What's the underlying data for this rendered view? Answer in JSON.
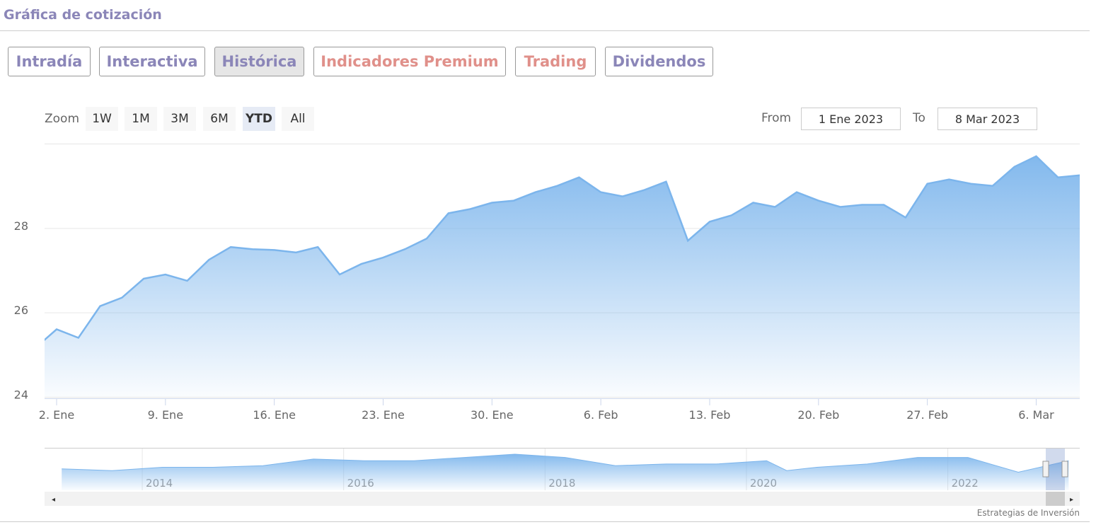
{
  "header": {
    "title": "Gráfica de cotización"
  },
  "tabs": [
    {
      "label": "Intradía",
      "color": "#8b86b8"
    },
    {
      "label": "Interactiva",
      "color": "#8b86b8"
    },
    {
      "label": "Histórica",
      "color": "#8b86b8",
      "active": true
    },
    {
      "label": "Indicadores Premium",
      "color": "#e0908a"
    },
    {
      "label": "Trading",
      "color": "#e0908a"
    },
    {
      "label": "Dividendos",
      "color": "#8b86b8"
    }
  ],
  "zoom": {
    "label": "Zoom",
    "buttons": [
      {
        "label": "1W"
      },
      {
        "label": "1M"
      },
      {
        "label": "3M"
      },
      {
        "label": "6M"
      },
      {
        "label": "YTD",
        "selected": true
      },
      {
        "label": "All"
      }
    ]
  },
  "range": {
    "from_label": "From",
    "from": "1 Ene 2023",
    "to_label": "To",
    "to": "8 Mar 2023"
  },
  "credit": "Estrategias de Inversión",
  "chart_data": {
    "type": "area",
    "color": "#7cb5ec",
    "grid": true,
    "categories": [
      null,
      "2. Ene",
      null,
      null,
      null,
      null,
      "9. Ene",
      null,
      null,
      null,
      null,
      "16. Ene",
      null,
      null,
      null,
      null,
      "23. Ene",
      null,
      null,
      null,
      null,
      "30. Ene",
      null,
      null,
      null,
      null,
      "6. Feb",
      null,
      null,
      null,
      null,
      "13. Feb",
      null,
      null,
      null,
      null,
      "20. Feb",
      null,
      null,
      null,
      null,
      "27. Feb",
      null,
      null,
      null,
      null,
      "6. Mar",
      null,
      null
    ],
    "values": [
      25.15,
      25.6,
      25.4,
      26.15,
      26.35,
      26.8,
      26.9,
      26.75,
      27.25,
      27.55,
      27.5,
      27.48,
      27.42,
      27.55,
      26.9,
      27.15,
      27.3,
      27.5,
      27.75,
      28.35,
      28.45,
      28.6,
      28.65,
      28.85,
      29.0,
      29.2,
      28.85,
      28.75,
      28.9,
      29.1,
      27.7,
      28.15,
      28.3,
      28.6,
      28.5,
      28.85,
      28.65,
      28.5,
      28.55,
      28.55,
      28.25,
      29.05,
      29.15,
      29.05,
      29.0,
      29.45,
      29.7,
      29.2,
      29.25
    ],
    "ylim": [
      24,
      30
    ],
    "yticks": [
      24,
      26,
      28
    ]
  },
  "navigator": {
    "type": "area",
    "color": "#7cb5ec",
    "x": [
      2013.2,
      2013.7,
      2014.2,
      2014.7,
      2015.2,
      2015.7,
      2016.2,
      2016.7,
      2017.2,
      2017.7,
      2018.2,
      2018.7,
      2019.2,
      2019.7,
      2020.2,
      2020.4,
      2020.7,
      2021.2,
      2021.7,
      2022.2,
      2022.7,
      2023.2
    ],
    "values": [
      23,
      22,
      24,
      24,
      25,
      29,
      28,
      28,
      30,
      32,
      30,
      25,
      26,
      26,
      28,
      22,
      24,
      26,
      30,
      30,
      21,
      28
    ],
    "xlim": [
      2013.03,
      2023.31
    ],
    "xticks": [
      2014,
      2016,
      2018,
      2020,
      2022
    ],
    "ylim": [
      10,
      35
    ]
  }
}
